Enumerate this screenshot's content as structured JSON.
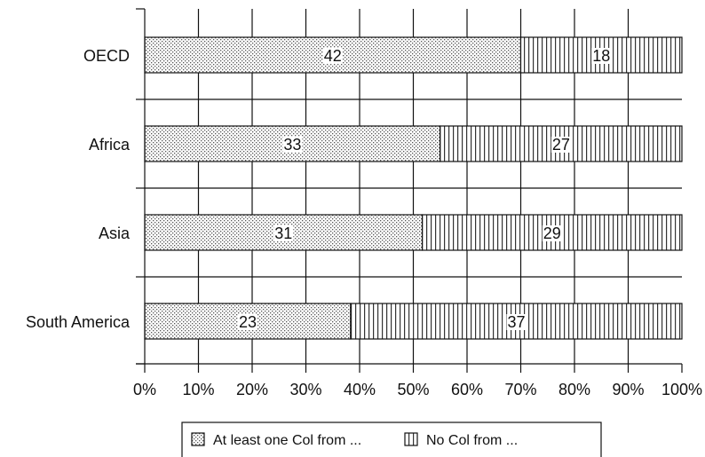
{
  "chart_data": {
    "type": "bar",
    "orientation": "horizontal",
    "stacked": true,
    "percent_scale": true,
    "categories": [
      "OECD",
      "Africa",
      "Asia",
      "South America"
    ],
    "series": [
      {
        "name": "At least one Col from ...",
        "values": [
          42,
          33,
          31,
          23
        ],
        "pattern": "dotted"
      },
      {
        "name": "No Col from ...",
        "values": [
          18,
          27,
          29,
          37
        ],
        "pattern": "vertical-stripes"
      }
    ],
    "x_ticks": [
      "0%",
      "10%",
      "20%",
      "30%",
      "40%",
      "50%",
      "60%",
      "70%",
      "80%",
      "90%",
      "100%"
    ],
    "xlim": [
      0,
      100
    ],
    "grid": "vertical",
    "legend_position": "bottom",
    "colors": {
      "bar_fill": "#ffffff",
      "ink": "#111111"
    }
  }
}
